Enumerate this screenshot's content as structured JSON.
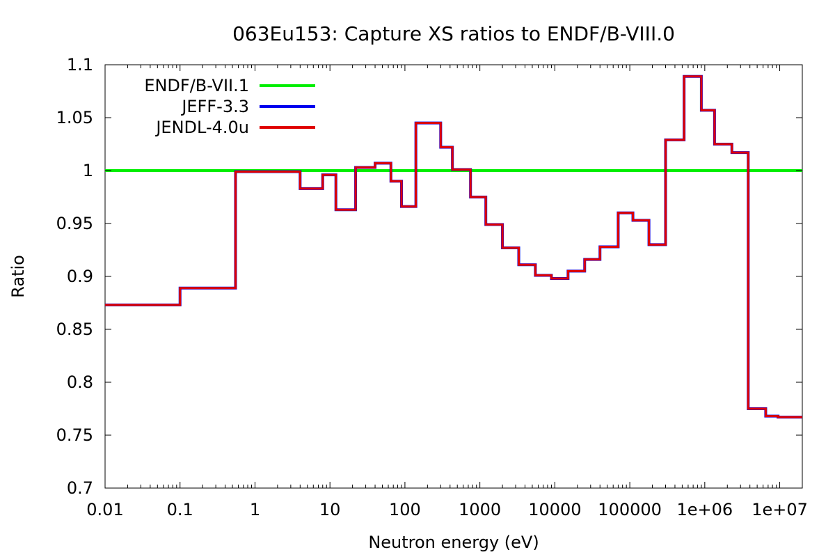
{
  "chart_data": {
    "type": "line",
    "title": "063Eu153: Capture XS ratios to ENDF/B-VIII.0",
    "xlabel": "Neutron energy (eV)",
    "ylabel": "Ratio",
    "x_scale": "log",
    "xlim": [
      0.01,
      20000000
    ],
    "ylim": [
      0.7,
      1.1
    ],
    "grid": false,
    "legend_position": "top-left",
    "x_ticks": [
      {
        "value": 0.01,
        "label": "0.01"
      },
      {
        "value": 0.1,
        "label": "0.1"
      },
      {
        "value": 1,
        "label": "1"
      },
      {
        "value": 10,
        "label": "10"
      },
      {
        "value": 100,
        "label": "100"
      },
      {
        "value": 1000,
        "label": "1000"
      },
      {
        "value": 10000,
        "label": "10000"
      },
      {
        "value": 100000,
        "label": "100000"
      },
      {
        "value": 1000000,
        "label": "1e+06"
      },
      {
        "value": 10000000,
        "label": "1e+07"
      }
    ],
    "y_ticks": [
      {
        "value": 0.7,
        "label": "0.7"
      },
      {
        "value": 0.75,
        "label": "0.75"
      },
      {
        "value": 0.8,
        "label": "0.8"
      },
      {
        "value": 0.85,
        "label": "0.85"
      },
      {
        "value": 0.9,
        "label": "0.9"
      },
      {
        "value": 0.95,
        "label": "0.95"
      },
      {
        "value": 1,
        "label": "1"
      },
      {
        "value": 1.05,
        "label": "1.05"
      },
      {
        "value": 1.1,
        "label": "1.1"
      }
    ],
    "series": [
      {
        "name": "ENDF/B-VII.1",
        "color": "#00ee00",
        "style": "step",
        "x": [
          0.01,
          20000000
        ],
        "y": [
          1.0,
          1.0
        ]
      },
      {
        "name": "JEFF-3.3",
        "color": "#0000ee",
        "style": "step",
        "x": [
          0.01,
          0.1,
          0.55,
          4,
          8,
          12,
          22,
          40,
          65,
          90,
          140,
          300,
          430,
          750,
          1200,
          2000,
          3300,
          5500,
          9000,
          15000,
          25000,
          40000,
          70000,
          110000,
          180000,
          300000,
          530000,
          900000,
          1350000,
          2300000,
          3800000,
          6500000,
          9500000,
          20000000
        ],
        "y": [
          0.873,
          0.889,
          0.999,
          0.983,
          0.996,
          0.963,
          1.003,
          1.007,
          0.99,
          0.966,
          1.045,
          1.022,
          1.001,
          0.975,
          0.949,
          0.927,
          0.911,
          0.901,
          0.898,
          0.905,
          0.916,
          0.928,
          0.96,
          0.953,
          0.93,
          1.029,
          1.089,
          1.057,
          1.025,
          1.017,
          0.775,
          0.768,
          0.767,
          0.767
        ]
      },
      {
        "name": "JENDL-4.0u",
        "color": "#e00000",
        "style": "step",
        "x": [
          0.01,
          0.1,
          0.55,
          4,
          8,
          12,
          22,
          40,
          65,
          90,
          140,
          300,
          430,
          750,
          1200,
          2000,
          3300,
          5500,
          9000,
          15000,
          25000,
          40000,
          70000,
          110000,
          180000,
          300000,
          530000,
          900000,
          1350000,
          2300000,
          3800000,
          6500000,
          9500000,
          20000000
        ],
        "y": [
          0.873,
          0.889,
          0.999,
          0.983,
          0.996,
          0.963,
          1.003,
          1.007,
          0.99,
          0.966,
          1.045,
          1.022,
          1.001,
          0.975,
          0.949,
          0.927,
          0.911,
          0.901,
          0.898,
          0.905,
          0.916,
          0.928,
          0.96,
          0.953,
          0.93,
          1.029,
          1.089,
          1.057,
          1.025,
          1.017,
          0.775,
          0.768,
          0.767,
          0.767
        ]
      }
    ]
  }
}
